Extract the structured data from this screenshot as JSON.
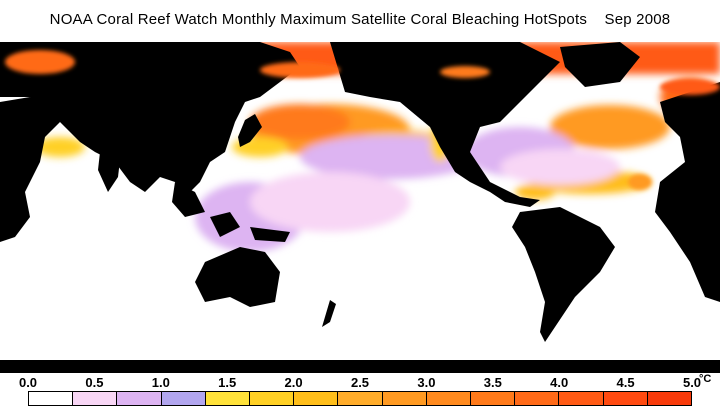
{
  "title": "NOAA Coral Reef Watch Monthly Maximum Satellite Coral Bleaching HotSpots    Sep 2008",
  "legend": {
    "ticks": [
      "0.0",
      "0.5",
      "1.0",
      "1.5",
      "2.0",
      "2.5",
      "3.0",
      "3.5",
      "4.0",
      "4.5",
      "5.0"
    ],
    "unit": "°C",
    "min": 0.0,
    "max": 5.0,
    "colors": [
      "#ffffff",
      "#f8d6f5",
      "#ddb4f2",
      "#b2a6ef",
      "#ffe23a",
      "#ffd025",
      "#ffbe1a",
      "#ffac2a",
      "#ff9a22",
      "#ff8a1e",
      "#ff7a1a",
      "#ff6a18",
      "#ff5a14",
      "#ff4a10",
      "#f83a0a"
    ]
  },
  "map": {
    "land_color": "#000000",
    "ocean_nodata_color": "#ffffff"
  }
}
